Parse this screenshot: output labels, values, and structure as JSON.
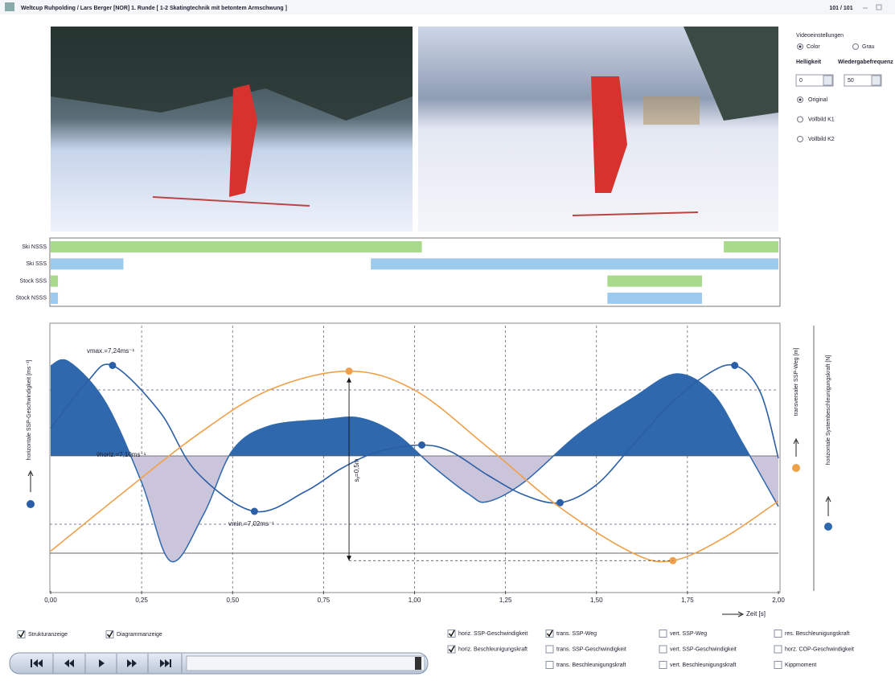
{
  "window": {
    "title": "Weltcup Ruhpolding / Lars Berger [NOR] 1. Runde [ 1-2 Skatingtechnik mit betontem Armschwung ]",
    "counter": "101 / 101"
  },
  "video_settings": {
    "title": "Videoeinstellungen",
    "color": "Color",
    "grau": "Grau",
    "brightness_label": "Helligkeit",
    "rate_label": "Wiedergabefrequenz",
    "brightness": "0",
    "rate": "50",
    "modes": [
      "Original",
      "Vollbild K1",
      "Vollbild K2"
    ]
  },
  "timeline": {
    "xlim": [
      0,
      2
    ],
    "rows": [
      {
        "label": "Ski NSSS",
        "color": "#a9d98a",
        "segments": [
          [
            0,
            1.02
          ],
          [
            1.85,
            2.0
          ]
        ]
      },
      {
        "label": "Ski SSS",
        "color": "#9ccbee",
        "segments": [
          [
            0,
            0.2
          ],
          [
            0.88,
            2.0
          ]
        ]
      },
      {
        "label": "Stock SSS",
        "color": "#a9d98a",
        "segments": [
          [
            0,
            0.02
          ],
          [
            1.53,
            1.79
          ]
        ]
      },
      {
        "label": "Stock NSSS",
        "color": "#9ccbee",
        "segments": [
          [
            0,
            0.02
          ],
          [
            1.53,
            1.79
          ]
        ]
      }
    ]
  },
  "chart_data": {
    "type": "line",
    "xlim": [
      0,
      2
    ],
    "xticks": [
      {
        "value": 0,
        "label": "0,00"
      },
      {
        "value": 0.25,
        "label": "0,25"
      },
      {
        "value": 0.5,
        "label": "0,50"
      },
      {
        "value": 0.75,
        "label": "0,75"
      },
      {
        "value": 1,
        "label": "1,00"
      },
      {
        "value": 1.25,
        "label": "1,25"
      },
      {
        "value": 1.5,
        "label": "1,50"
      },
      {
        "value": 1.75,
        "label": "1,75"
      },
      {
        "value": 2,
        "label": "2,00"
      }
    ],
    "x_label": "Zeit [s]",
    "y_label": "horizontale SSP-Geschwindigkeit [ms⁻¹]",
    "ylim": [
      6.9,
      7.3
    ],
    "y2_label": "transversaler SSP-Weg [m]",
    "y2lim": [
      -0.08,
      0.62
    ],
    "y3_label": "horizontale Systembeschleunigungskraft [N]",
    "y3lim": [
      -1.68,
      1.62
    ],
    "grid": true,
    "series": [
      {
        "type": "area",
        "axis": "y3",
        "color": "#2f68ad",
        "negative_color": "#cbc5dc",
        "x": [
          0,
          0.05,
          0.15,
          0.25,
          0.33,
          0.42,
          0.5,
          0.6,
          0.75,
          0.85,
          0.95,
          1.05,
          1.15,
          1.2,
          1.3,
          1.45,
          1.6,
          1.72,
          1.82,
          1.9,
          2.0
        ],
        "values": [
          1.12,
          1.17,
          0.67,
          -0.33,
          -1.31,
          -0.73,
          0.07,
          0.37,
          0.45,
          0.47,
          0.27,
          -0.13,
          -0.48,
          -0.57,
          -0.33,
          0.27,
          0.72,
          1.02,
          0.77,
          0.17,
          -0.63
        ]
      },
      {
        "type": "line",
        "axis": "y",
        "color": "#2a5ea6",
        "x": [
          0,
          0.1,
          0.17,
          0.3,
          0.4,
          0.56,
          0.7,
          0.8,
          0.9,
          1.02,
          1.1,
          1.2,
          1.3,
          1.4,
          1.5,
          1.6,
          1.7,
          1.8,
          1.88,
          1.95,
          2.0
        ],
        "values": [
          7.145,
          7.215,
          7.24,
          7.17,
          7.08,
          7.02,
          7.05,
          7.085,
          7.11,
          7.12,
          7.11,
          7.075,
          7.045,
          7.033,
          7.06,
          7.12,
          7.18,
          7.225,
          7.24,
          7.2,
          7.1
        ]
      },
      {
        "type": "line",
        "axis": "y2",
        "color": "#f0a04a",
        "x": [
          0,
          0.2,
          0.4,
          0.6,
          0.82,
          1.0,
          1.2,
          1.4,
          1.6,
          1.71,
          1.85,
          2.0
        ],
        "values": [
          0.025,
          0.18,
          0.33,
          0.45,
          0.5,
          0.45,
          0.3,
          0.14,
          0.02,
          0,
          0.06,
          0.157
        ]
      }
    ],
    "annotations": [
      "vmax.=7,24ms⁻¹",
      "v̄horiz.=7,10ms⁻¹",
      "vmin.=7,02ms⁻¹",
      "sᵧ=0,5m"
    ]
  },
  "controls": {
    "display_options": [
      {
        "label": "Strukturanzeige",
        "checked": true
      },
      {
        "label": "Diagrammanzeige",
        "checked": true
      }
    ],
    "series_options": [
      {
        "label": "horiz. SSP-Geschwindigkeit",
        "checked": true
      },
      {
        "label": "trans. SSP-Weg",
        "checked": true
      },
      {
        "label": "vert. SSP-Weg",
        "checked": false
      },
      {
        "label": "res. Beschleunigungskraft",
        "checked": false
      },
      {
        "label": "horiz. Beschleunigungskraft",
        "checked": true
      },
      {
        "label": "trans. SSP-Geschwindigkeit",
        "checked": false
      },
      {
        "label": "vert. SSP-Geschwindigkeit",
        "checked": false
      },
      {
        "label": "horz. COP-Geschwindigkeit",
        "checked": false
      },
      {
        "label": "trans. Beschleunigungskraft",
        "checked": false
      },
      {
        "label": "vert. Beschleunigungskraft",
        "checked": false
      },
      {
        "label": "Kippmoment",
        "checked": false
      }
    ]
  }
}
